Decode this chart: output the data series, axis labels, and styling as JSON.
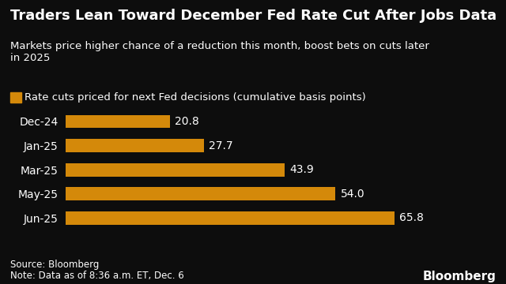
{
  "title": "Traders Lean Toward December Fed Rate Cut After Jobs Data",
  "subtitle": "Markets price higher chance of a reduction this month, boost bets on cuts later\nin 2025",
  "legend_label": "Rate cuts priced for next Fed decisions (cumulative basis points)",
  "categories": [
    "Dec-24",
    "Jan-25",
    "Mar-25",
    "May-25",
    "Jun-25"
  ],
  "values": [
    20.8,
    27.7,
    43.9,
    54.0,
    65.8
  ],
  "bar_color": "#D4890A",
  "background_color": "#0d0d0d",
  "text_color": "#ffffff",
  "source_text": "Source: Bloomberg",
  "note_text": "Note: Data as of 8:36 a.m. ET, Dec. 6",
  "bloomberg_label": "Bloomberg",
  "xlim": [
    0,
    75
  ],
  "title_fontsize": 13.0,
  "subtitle_fontsize": 9.5,
  "legend_fontsize": 9.5,
  "tick_fontsize": 10,
  "value_fontsize": 10,
  "footer_fontsize": 8.5,
  "bloomberg_fontsize": 11
}
